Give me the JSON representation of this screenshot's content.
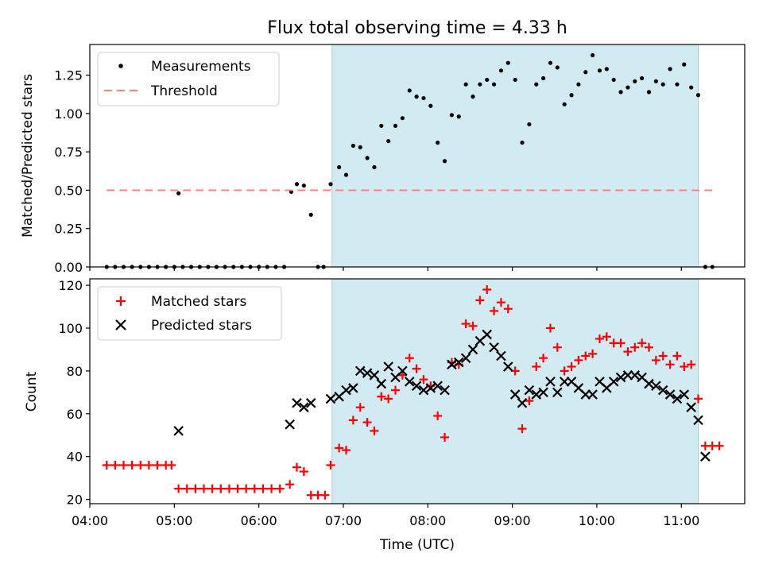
{
  "chart_data": [
    {
      "type": "scatter",
      "title": "Flux total observing time = 4.33 h",
      "ylabel": "Matched/Predicted stars",
      "xlabel": "",
      "xlim": [
        "04:00",
        "11:45"
      ],
      "ylim": [
        0,
        1.45
      ],
      "yticks": [
        "0.00",
        "0.25",
        "0.50",
        "0.75",
        "1.00",
        "1.25"
      ],
      "shaded_region": {
        "x_start": "06:52",
        "x_end": "11:12",
        "color": "#add8e6"
      },
      "legend_position": "upper-left",
      "series": [
        {
          "name": "Measurements",
          "marker": "dot",
          "color": "#000000",
          "points": [
            [
              "04:12",
              0
            ],
            [
              "04:18",
              0
            ],
            [
              "04:24",
              0
            ],
            [
              "04:30",
              0
            ],
            [
              "04:36",
              0
            ],
            [
              "04:42",
              0
            ],
            [
              "04:48",
              0
            ],
            [
              "04:54",
              0
            ],
            [
              "05:00",
              0
            ],
            [
              "05:03",
              0.48
            ],
            [
              "05:06",
              0
            ],
            [
              "05:12",
              0
            ],
            [
              "05:18",
              0
            ],
            [
              "05:24",
              0
            ],
            [
              "05:30",
              0
            ],
            [
              "05:36",
              0
            ],
            [
              "05:42",
              0
            ],
            [
              "05:48",
              0
            ],
            [
              "05:54",
              0
            ],
            [
              "06:00",
              0
            ],
            [
              "06:06",
              0
            ],
            [
              "06:12",
              0
            ],
            [
              "06:18",
              0
            ],
            [
              "06:23",
              0.49
            ],
            [
              "06:27",
              0.54
            ],
            [
              "06:32",
              0.53
            ],
            [
              "06:37",
              0.34
            ],
            [
              "06:42",
              0
            ],
            [
              "06:46",
              0
            ],
            [
              "06:51",
              0.54
            ],
            [
              "06:57",
              0.65
            ],
            [
              "07:02",
              0.6
            ],
            [
              "07:07",
              0.79
            ],
            [
              "07:12",
              0.78
            ],
            [
              "07:17",
              0.71
            ],
            [
              "07:22",
              0.65
            ],
            [
              "07:27",
              0.92
            ],
            [
              "07:32",
              0.82
            ],
            [
              "07:37",
              0.92
            ],
            [
              "07:42",
              0.97
            ],
            [
              "07:47",
              1.15
            ],
            [
              "07:52",
              1.11
            ],
            [
              "07:57",
              1.1
            ],
            [
              "08:02",
              1.05
            ],
            [
              "08:07",
              0.81
            ],
            [
              "08:12",
              0.69
            ],
            [
              "08:17",
              0.99
            ],
            [
              "08:22",
              0.98
            ],
            [
              "08:27",
              1.19
            ],
            [
              "08:32",
              1.11
            ],
            [
              "08:37",
              1.19
            ],
            [
              "08:42",
              1.22
            ],
            [
              "08:47",
              1.19
            ],
            [
              "08:52",
              1.28
            ],
            [
              "08:57",
              1.33
            ],
            [
              "09:02",
              1.22
            ],
            [
              "09:07",
              0.81
            ],
            [
              "09:12",
              0.93
            ],
            [
              "09:17",
              1.19
            ],
            [
              "09:22",
              1.23
            ],
            [
              "09:27",
              1.33
            ],
            [
              "09:32",
              1.3
            ],
            [
              "09:37",
              1.06
            ],
            [
              "09:42",
              1.12
            ],
            [
              "09:47",
              1.19
            ],
            [
              "09:52",
              1.27
            ],
            [
              "09:57",
              1.38
            ],
            [
              "10:02",
              1.28
            ],
            [
              "10:07",
              1.29
            ],
            [
              "10:12",
              1.22
            ],
            [
              "10:17",
              1.14
            ],
            [
              "10:22",
              1.17
            ],
            [
              "10:27",
              1.21
            ],
            [
              "10:32",
              1.23
            ],
            [
              "10:37",
              1.14
            ],
            [
              "10:42",
              1.21
            ],
            [
              "10:47",
              1.19
            ],
            [
              "10:52",
              1.29
            ],
            [
              "10:57",
              1.19
            ],
            [
              "11:02",
              1.32
            ],
            [
              "11:07",
              1.17
            ],
            [
              "11:12",
              1.12
            ],
            [
              "11:17",
              0
            ],
            [
              "11:22",
              0
            ]
          ]
        },
        {
          "name": "Threshold",
          "marker": "dashed-line",
          "color": "#ff7f7f",
          "points": [
            [
              "04:12",
              0.5
            ],
            [
              "11:22",
              0.5
            ]
          ]
        }
      ]
    },
    {
      "type": "scatter",
      "title": "",
      "ylabel": "Count",
      "xlabel": "Time (UTC)",
      "xlim": [
        "04:00",
        "11:45"
      ],
      "ylim": [
        18,
        123
      ],
      "xticks": [
        "04:00",
        "05:00",
        "06:00",
        "07:00",
        "08:00",
        "09:00",
        "10:00",
        "11:00"
      ],
      "yticks": [
        "20",
        "40",
        "60",
        "80",
        "100",
        "120"
      ],
      "shaded_region": {
        "x_start": "06:52",
        "x_end": "11:12",
        "color": "#add8e6"
      },
      "legend_position": "upper-left",
      "series": [
        {
          "name": "Matched stars",
          "marker": "plus",
          "color": "#ff0000",
          "points": [
            [
              "04:12",
              36
            ],
            [
              "04:18",
              36
            ],
            [
              "04:24",
              36
            ],
            [
              "04:30",
              36
            ],
            [
              "04:36",
              36
            ],
            [
              "04:42",
              36
            ],
            [
              "04:48",
              36
            ],
            [
              "04:54",
              36
            ],
            [
              "04:58",
              36
            ],
            [
              "05:03",
              25
            ],
            [
              "05:09",
              25
            ],
            [
              "05:15",
              25
            ],
            [
              "05:21",
              25
            ],
            [
              "05:27",
              25
            ],
            [
              "05:33",
              25
            ],
            [
              "05:39",
              25
            ],
            [
              "05:45",
              25
            ],
            [
              "05:51",
              25
            ],
            [
              "05:57",
              25
            ],
            [
              "06:03",
              25
            ],
            [
              "06:09",
              25
            ],
            [
              "06:15",
              25
            ],
            [
              "06:22",
              27
            ],
            [
              "06:27",
              35
            ],
            [
              "06:32",
              33
            ],
            [
              "06:37",
              22
            ],
            [
              "06:42",
              22
            ],
            [
              "06:47",
              22
            ],
            [
              "06:51",
              36
            ],
            [
              "06:57",
              44
            ],
            [
              "07:02",
              43
            ],
            [
              "07:07",
              57
            ],
            [
              "07:12",
              63
            ],
            [
              "07:17",
              56
            ],
            [
              "07:22",
              52
            ],
            [
              "07:27",
              68
            ],
            [
              "07:32",
              67
            ],
            [
              "07:37",
              71
            ],
            [
              "07:42",
              78
            ],
            [
              "07:47",
              86
            ],
            [
              "07:52",
              81
            ],
            [
              "07:57",
              76
            ],
            [
              "08:02",
              73
            ],
            [
              "08:07",
              59
            ],
            [
              "08:12",
              49
            ],
            [
              "08:17",
              84
            ],
            [
              "08:22",
              83
            ],
            [
              "08:27",
              102
            ],
            [
              "08:32",
              101
            ],
            [
              "08:37",
              113
            ],
            [
              "08:42",
              118
            ],
            [
              "08:47",
              108
            ],
            [
              "08:52",
              112
            ],
            [
              "08:57",
              109
            ],
            [
              "09:02",
              80
            ],
            [
              "09:07",
              53
            ],
            [
              "09:12",
              66
            ],
            [
              "09:17",
              82
            ],
            [
              "09:22",
              86
            ],
            [
              "09:27",
              100
            ],
            [
              "09:32",
              91
            ],
            [
              "09:37",
              80
            ],
            [
              "09:42",
              82
            ],
            [
              "09:47",
              85
            ],
            [
              "09:52",
              87
            ],
            [
              "09:57",
              88
            ],
            [
              "10:02",
              95
            ],
            [
              "10:07",
              96
            ],
            [
              "10:12",
              93
            ],
            [
              "10:17",
              93
            ],
            [
              "10:22",
              89
            ],
            [
              "10:27",
              91
            ],
            [
              "10:32",
              93
            ],
            [
              "10:37",
              91
            ],
            [
              "10:42",
              85
            ],
            [
              "10:47",
              87
            ],
            [
              "10:52",
              83
            ],
            [
              "10:57",
              87
            ],
            [
              "11:02",
              82
            ],
            [
              "11:07",
              83
            ],
            [
              "11:12",
              67
            ],
            [
              "11:17",
              45
            ],
            [
              "11:22",
              45
            ],
            [
              "11:27",
              45
            ]
          ]
        },
        {
          "name": "Predicted stars",
          "marker": "x",
          "color": "#000000",
          "points": [
            [
              "05:03",
              52
            ],
            [
              "06:22",
              55
            ],
            [
              "06:27",
              65
            ],
            [
              "06:32",
              63
            ],
            [
              "06:37",
              65
            ],
            [
              "06:51",
              67
            ],
            [
              "06:57",
              68
            ],
            [
              "07:02",
              71
            ],
            [
              "07:07",
              72
            ],
            [
              "07:12",
              80
            ],
            [
              "07:17",
              79
            ],
            [
              "07:22",
              78
            ],
            [
              "07:27",
              74
            ],
            [
              "07:32",
              82
            ],
            [
              "07:37",
              77
            ],
            [
              "07:42",
              80
            ],
            [
              "07:47",
              75
            ],
            [
              "07:52",
              73
            ],
            [
              "07:57",
              71
            ],
            [
              "08:02",
              72
            ],
            [
              "08:07",
              73
            ],
            [
              "08:12",
              71
            ],
            [
              "08:17",
              83
            ],
            [
              "08:22",
              84
            ],
            [
              "08:27",
              86
            ],
            [
              "08:32",
              90
            ],
            [
              "08:37",
              94
            ],
            [
              "08:42",
              97
            ],
            [
              "08:47",
              91
            ],
            [
              "08:52",
              87
            ],
            [
              "08:57",
              82
            ],
            [
              "09:02",
              69
            ],
            [
              "09:07",
              65
            ],
            [
              "09:12",
              71
            ],
            [
              "09:17",
              69
            ],
            [
              "09:22",
              70
            ],
            [
              "09:27",
              75
            ],
            [
              "09:32",
              70
            ],
            [
              "09:37",
              75
            ],
            [
              "09:42",
              75
            ],
            [
              "09:47",
              72
            ],
            [
              "09:52",
              69
            ],
            [
              "09:57",
              69
            ],
            [
              "10:02",
              75
            ],
            [
              "10:07",
              72
            ],
            [
              "10:12",
              75
            ],
            [
              "10:17",
              77
            ],
            [
              "10:22",
              78
            ],
            [
              "10:27",
              78
            ],
            [
              "10:32",
              77
            ],
            [
              "10:37",
              74
            ],
            [
              "10:42",
              73
            ],
            [
              "10:47",
              71
            ],
            [
              "10:52",
              69
            ],
            [
              "10:57",
              67
            ],
            [
              "11:02",
              69
            ],
            [
              "11:07",
              63
            ],
            [
              "11:12",
              57
            ],
            [
              "11:17",
              40
            ]
          ]
        }
      ]
    }
  ]
}
